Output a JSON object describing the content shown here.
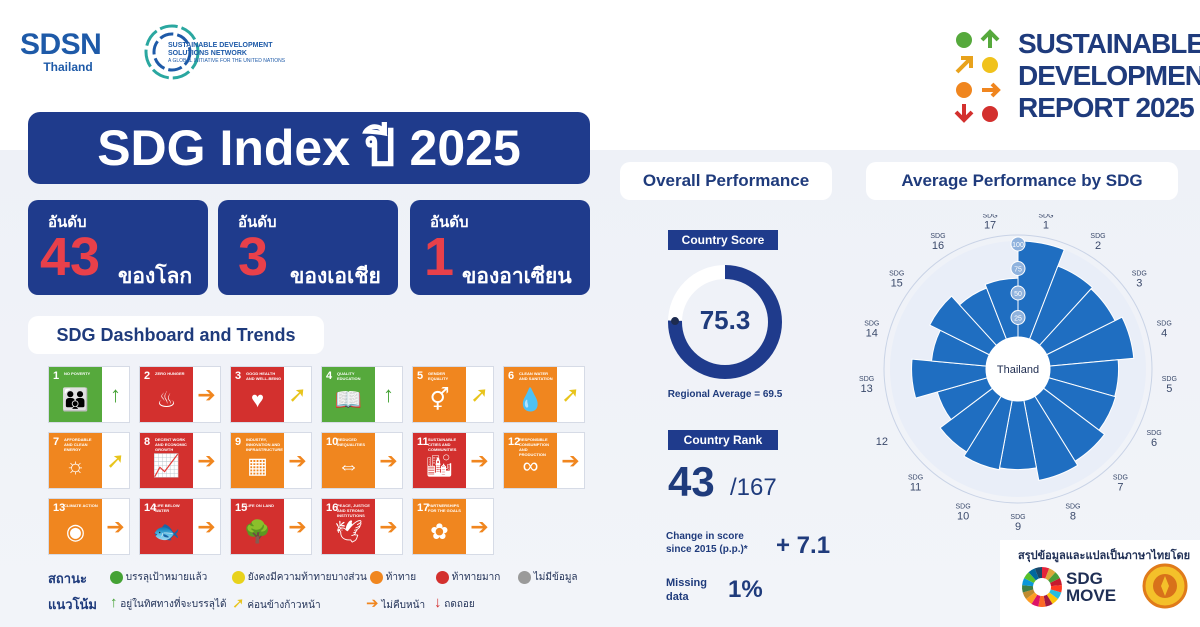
{
  "logos": {
    "sdsn": "SDSN",
    "sdsn_country": "Thailand",
    "network_line1": "SUSTAINABLE DEVELOPMENT",
    "network_line2": "SOLUTIONS NETWORK",
    "network_line3": "A GLOBAL INITIATIVE FOR THE UNITED NATIONS",
    "report_line1": "SUSTAINABLE",
    "report_line2": "DEVELOPMENT",
    "report_line3": "REPORT 2025"
  },
  "title": "SDG Index ปี 2025",
  "ranks": [
    {
      "label": "อันดับ",
      "number": "43",
      "desc": "ของโลก"
    },
    {
      "label": "อันดับ",
      "number": "3",
      "desc": "ของเอเชีย"
    },
    {
      "label": "อันดับ",
      "number": "1",
      "desc": "ของอาเซียน"
    }
  ],
  "dashboard_title": "SDG Dashboard and Trends",
  "goals": [
    {
      "num": "1",
      "name": "NO POVERTY",
      "color": "#56a93c",
      "glyph": "👪",
      "arrow": "↑",
      "arrow_color": "#45a235"
    },
    {
      "num": "2",
      "name": "ZERO HUNGER",
      "color": "#d3302e",
      "glyph": "♨",
      "arrow": "➔",
      "arrow_color": "#f0861f"
    },
    {
      "num": "3",
      "name": "GOOD HEALTH AND WELL-BEING",
      "color": "#d3302e",
      "glyph": "♥",
      "arrow": "➚",
      "arrow_color": "#e8c41c"
    },
    {
      "num": "4",
      "name": "QUALITY EDUCATION",
      "color": "#56a93c",
      "glyph": "📖",
      "arrow": "↑",
      "arrow_color": "#45a235"
    },
    {
      "num": "5",
      "name": "GENDER EQUALITY",
      "color": "#f0861f",
      "glyph": "⚥",
      "arrow": "➚",
      "arrow_color": "#e8c41c"
    },
    {
      "num": "6",
      "name": "CLEAN WATER AND SANITATION",
      "color": "#f0861f",
      "glyph": "💧",
      "arrow": "➚",
      "arrow_color": "#e8c41c"
    },
    {
      "num": "7",
      "name": "AFFORDABLE AND CLEAN ENERGY",
      "color": "#f0861f",
      "glyph": "☼",
      "arrow": "➚",
      "arrow_color": "#e8c41c"
    },
    {
      "num": "8",
      "name": "DECENT WORK AND ECONOMIC GROWTH",
      "color": "#d3302e",
      "glyph": "📈",
      "arrow": "➔",
      "arrow_color": "#f0861f"
    },
    {
      "num": "9",
      "name": "INDUSTRY, INNOVATION AND INFRASTRUCTURE",
      "color": "#f0861f",
      "glyph": "▦",
      "arrow": "➔",
      "arrow_color": "#f0861f"
    },
    {
      "num": "10",
      "name": "REDUCED INEQUALITIES",
      "color": "#f0861f",
      "glyph": "⇔",
      "arrow": "➔",
      "arrow_color": "#f0861f"
    },
    {
      "num": "11",
      "name": "SUSTAINABLE CITIES AND COMMUNITIES",
      "color": "#d3302e",
      "glyph": "🏙",
      "arrow": "➔",
      "arrow_color": "#f0861f"
    },
    {
      "num": "12",
      "name": "RESPONSIBLE CONSUMPTION AND PRODUCTION",
      "color": "#f0861f",
      "glyph": "∞",
      "arrow": "➔",
      "arrow_color": "#f0861f"
    },
    {
      "num": "13",
      "name": "CLIMATE ACTION",
      "color": "#f0861f",
      "glyph": "◉",
      "arrow": "➔",
      "arrow_color": "#f0861f"
    },
    {
      "num": "14",
      "name": "LIFE BELOW WATER",
      "color": "#d3302e",
      "glyph": "🐟",
      "arrow": "➔",
      "arrow_color": "#f0861f"
    },
    {
      "num": "15",
      "name": "LIFE ON LAND",
      "color": "#d3302e",
      "glyph": "🌳",
      "arrow": "➔",
      "arrow_color": "#f0861f"
    },
    {
      "num": "16",
      "name": "PEACE, JUSTICE AND STRONG INSTITUTIONS",
      "color": "#d3302e",
      "glyph": "🕊",
      "arrow": "➔",
      "arrow_color": "#f0861f"
    },
    {
      "num": "17",
      "name": "PARTNERSHIPS FOR THE GOALS",
      "color": "#f0861f",
      "glyph": "✿",
      "arrow": "➔",
      "arrow_color": "#f0861f"
    }
  ],
  "legend": {
    "status_head": "สถานะ",
    "trend_head": "แนวโน้ม",
    "status": [
      {
        "label": "บรรลุเป้าหมายแล้ว",
        "color": "#45a235"
      },
      {
        "label": "ยังคงมีความท้าทายบางส่วน",
        "color": "#e8d21c"
      },
      {
        "label": "ท้าทาย",
        "color": "#f0861f"
      },
      {
        "label": "ท้าทายมาก",
        "color": "#d3302e"
      },
      {
        "label": "ไม่มีข้อมูล",
        "color": "#9a9a9a"
      }
    ],
    "trend": [
      {
        "label": "อยู่ในทิศทางที่จะบรรลุได้",
        "arrow": "↑",
        "color": "#45a235"
      },
      {
        "label": "ค่อนข้างก้าวหน้า",
        "arrow": "➚",
        "color": "#e8c41c"
      },
      {
        "label": "ไม่คืบหน้า",
        "arrow": "➔",
        "color": "#f0861f"
      },
      {
        "label": "ถดถอย",
        "arrow": "↓",
        "color": "#d3302e"
      }
    ]
  },
  "overall": {
    "title": "Overall Performance",
    "score_label": "Country Score",
    "score": "75.3",
    "score_value": 75.3,
    "regional": "Regional Average = 69.5",
    "rank_label": "Country Rank",
    "rank": "43",
    "rank_total": "/167",
    "change_label_1": "Change in score",
    "change_label_2": "since 2015 (p.p.)*",
    "change_value": "+ 7.1",
    "missing_label_1": "Missing",
    "missing_label_2": "data",
    "missing_value": "1%"
  },
  "avg_title": "Average Performance by SDG",
  "chart_data": {
    "type": "polar-bar",
    "center_label": "Thailand",
    "ticks": [
      "25",
      "50",
      "75",
      "100"
    ],
    "categories": [
      "SDG 1",
      "SDG 2",
      "SDG 3",
      "SDG 4",
      "SDG 5",
      "SDG 6",
      "SDG 7",
      "SDG 8",
      "SDG 9",
      "SDG 10",
      "SDG 11",
      "12",
      "SDG 13",
      "SDG 14",
      "SDG 15",
      "SDG 16",
      "SDG 17"
    ],
    "values": [
      100,
      82,
      80,
      88,
      72,
      73,
      80,
      85,
      72,
      74,
      69,
      55,
      78,
      58,
      70,
      58,
      62
    ],
    "ylim": [
      0,
      100
    ]
  },
  "footer": {
    "credit": "สรุปข้อมูลและแปลเป็นภาษาไทยโดย",
    "sdgmove_1": "SDG",
    "sdgmove_2": "MOVE"
  }
}
